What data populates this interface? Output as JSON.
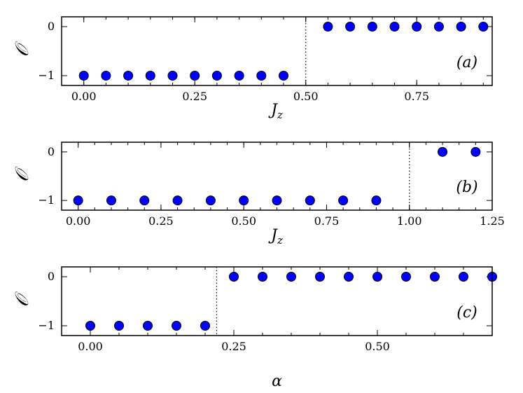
{
  "chart_data": [
    {
      "type": "scatter",
      "panel_label": "(a)",
      "xlabel": "J_z",
      "ylabel": "𝒪",
      "xlim": [
        -0.05,
        0.92
      ],
      "ylim": [
        -1.2,
        0.2
      ],
      "xticks": [
        0.0,
        0.25,
        0.5,
        0.75
      ],
      "xtick_labels": [
        "0.00",
        "0.25",
        "0.50",
        "0.75"
      ],
      "yticks": [
        0,
        -1
      ],
      "ytick_labels": [
        "0",
        "−1"
      ],
      "minor_xtick_step": 0.05,
      "transition_x": 0.5,
      "x": [
        0.0,
        0.05,
        0.1,
        0.15,
        0.2,
        0.25,
        0.3,
        0.35,
        0.4,
        0.45,
        0.55,
        0.6,
        0.65,
        0.7,
        0.75,
        0.8,
        0.85,
        0.9
      ],
      "y": [
        -1,
        -1,
        -1,
        -1,
        -1,
        -1,
        -1,
        -1,
        -1,
        -1,
        0,
        0,
        0,
        0,
        0,
        0,
        0,
        0
      ],
      "marker_color": "#0000ff",
      "grid": false
    },
    {
      "type": "scatter",
      "panel_label": "(b)",
      "xlabel": "J_z",
      "ylabel": "𝒪",
      "xlim": [
        -0.05,
        1.25
      ],
      "ylim": [
        -1.2,
        0.2
      ],
      "xticks": [
        0.0,
        0.25,
        0.5,
        0.75,
        1.0,
        1.25
      ],
      "xtick_labels": [
        "0.00",
        "0.25",
        "0.50",
        "0.75",
        "1.00",
        "1.25"
      ],
      "yticks": [
        0,
        -1
      ],
      "ytick_labels": [
        "0",
        "−1"
      ],
      "minor_xtick_step": 0.05,
      "transition_x": 1.0,
      "x": [
        0.0,
        0.1,
        0.2,
        0.3,
        0.4,
        0.5,
        0.6,
        0.7,
        0.8,
        0.9,
        1.1,
        1.2
      ],
      "y": [
        -1,
        -1,
        -1,
        -1,
        -1,
        -1,
        -1,
        -1,
        -1,
        -1,
        0,
        0
      ],
      "marker_color": "#0000ff",
      "grid": false
    },
    {
      "type": "scatter",
      "panel_label": "(c)",
      "xlabel": "α",
      "ylabel": "𝒪",
      "xlim": [
        -0.05,
        0.7
      ],
      "ylim": [
        -1.2,
        0.2
      ],
      "xticks": [
        0.0,
        0.25,
        0.5
      ],
      "xtick_labels": [
        "0.00",
        "0.25",
        "0.50"
      ],
      "yticks": [
        0,
        -1
      ],
      "ytick_labels": [
        "0",
        "−1"
      ],
      "minor_xtick_step": 0.05,
      "transition_x": 0.22,
      "x": [
        0.0,
        0.05,
        0.1,
        0.15,
        0.2,
        0.25,
        0.3,
        0.35,
        0.4,
        0.45,
        0.5,
        0.55,
        0.6,
        0.65,
        0.7
      ],
      "y": [
        -1,
        -1,
        -1,
        -1,
        -1,
        0,
        0,
        0,
        0,
        0,
        0,
        0,
        0,
        0,
        0
      ],
      "marker_color": "#0000ff",
      "grid": false
    }
  ]
}
